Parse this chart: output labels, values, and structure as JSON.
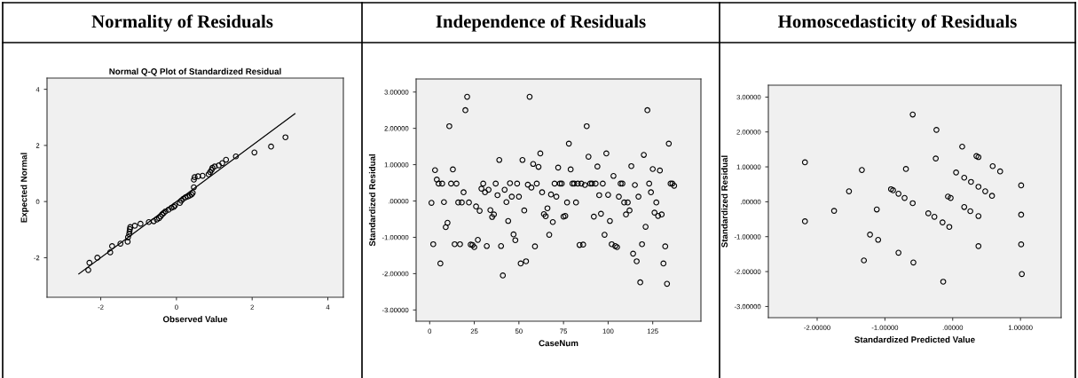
{
  "chart_data": [
    {
      "type": "scatter",
      "title": "Normality of Residuals",
      "subtitle": "Normal Q-Q Plot of Standardized Residual",
      "xlabel": "Observed Value",
      "ylabel": "Expected Normal",
      "xlim": [
        -3.42,
        4.41
      ],
      "ylim": [
        -3.41,
        4.4
      ],
      "xticks": [
        -2,
        0,
        2,
        4
      ],
      "yticks": [
        -2,
        0,
        2,
        4
      ],
      "series": [
        {
          "marker": "circle",
          "color": "#000000",
          "x": [
            -2.33,
            -2.3,
            -2.09,
            -1.75,
            -1.7,
            -1.48,
            -1.29,
            -1.28,
            -1.25,
            -1.24,
            -1.23,
            -1.22,
            -1.1,
            -0.95,
            -0.73,
            -0.6,
            -0.52,
            -0.46,
            -0.42,
            -0.38,
            -0.34,
            -0.29,
            -0.21,
            -0.13,
            -0.07,
            -0.04,
            0.09,
            0.13,
            0.18,
            0.24,
            0.3,
            0.35,
            0.4,
            0.43,
            0.46,
            0.46,
            0.48,
            0.57,
            0.69,
            0.85,
            0.89,
            0.93,
            0.95,
            1.01,
            1.12,
            1.21,
            1.31,
            1.57,
            2.06,
            2.5,
            2.88
          ],
          "values": [
            -2.44,
            -2.18,
            -2.0,
            -1.81,
            -1.59,
            -1.5,
            -1.43,
            -1.27,
            -1.16,
            -1.07,
            -0.98,
            -0.91,
            -0.86,
            -0.79,
            -0.73,
            -0.7,
            -0.64,
            -0.59,
            -0.53,
            -0.46,
            -0.41,
            -0.35,
            -0.29,
            -0.22,
            -0.19,
            -0.14,
            -0.05,
            0.03,
            0.1,
            0.15,
            0.18,
            0.21,
            0.25,
            0.31,
            0.51,
            0.78,
            0.87,
            0.9,
            0.92,
            0.97,
            1.05,
            1.13,
            1.2,
            1.25,
            1.29,
            1.37,
            1.49,
            1.61,
            1.75,
            1.96,
            2.29
          ]
        },
        {
          "type": "line",
          "color": "#000000",
          "x": [
            -2.58,
            3.13
          ],
          "values": [
            -2.58,
            3.13
          ]
        }
      ]
    },
    {
      "type": "scatter",
      "title": "Independence of Residuals",
      "xlabel": "CaseNum",
      "ylabel": "Standardized Residual",
      "marker": "circle",
      "xlim": [
        -7.6,
        152
      ],
      "ylim": [
        -3.31,
        3.36
      ],
      "xticks": [
        0,
        25,
        50,
        75,
        100,
        125
      ],
      "yticks": [
        {
          "value": -3,
          "label": "-3.00000"
        },
        {
          "value": -2,
          "label": "-2.00000"
        },
        {
          "value": -1,
          "label": "-1.00000"
        },
        {
          "value": 0,
          "label": ".00000"
        },
        {
          "value": 1,
          "label": "1.00000"
        },
        {
          "value": 2,
          "label": "2.00000"
        },
        {
          "value": 3,
          "label": "3.00000"
        }
      ],
      "series": [
        {
          "color": "#000000",
          "x": [
            1,
            2,
            3,
            4,
            5,
            6,
            7,
            8,
            9,
            10,
            11,
            12,
            13,
            14,
            15,
            16,
            17,
            18,
            19,
            20,
            21,
            22,
            23,
            24,
            25,
            26,
            27,
            28,
            29,
            30,
            31,
            32,
            33,
            34,
            35,
            36,
            37,
            38,
            39,
            40,
            41,
            42,
            43,
            44,
            45,
            46,
            47,
            48,
            49,
            50,
            51,
            52,
            53,
            54,
            55,
            56,
            57,
            58,
            59,
            60,
            61,
            62,
            63,
            64,
            65,
            66,
            67,
            68,
            69,
            70,
            71,
            72,
            73,
            74,
            75,
            76,
            77,
            78,
            79,
            80,
            81,
            82,
            83,
            84,
            85,
            86,
            87,
            88,
            89,
            90,
            91,
            92,
            93,
            94,
            95,
            96,
            97,
            98,
            99,
            100,
            101,
            102,
            103,
            104,
            105,
            106,
            107,
            108,
            109,
            110,
            111,
            112,
            113,
            114,
            115,
            116,
            117,
            118,
            119,
            120,
            121,
            122,
            123,
            124,
            125,
            126,
            127,
            128,
            129,
            130,
            131,
            132,
            133,
            134,
            135,
            136,
            137
          ],
          "values": [
            -0.05,
            -1.19,
            0.85,
            0.59,
            0.48,
            -1.72,
            0.48,
            -0.03,
            -0.72,
            -0.6,
            2.06,
            0.48,
            0.87,
            -1.19,
            0.48,
            -0.04,
            -1.19,
            -0.04,
            0.24,
            2.5,
            2.87,
            -0.04,
            -1.2,
            -1.21,
            -1.27,
            -0.15,
            -1.07,
            -0.27,
            0.34,
            0.48,
            0.24,
            -1.24,
            0.31,
            -0.25,
            -0.44,
            -0.37,
            0.48,
            0.16,
            1.13,
            -1.24,
            -2.05,
            0.31,
            -0.03,
            -0.55,
            0.49,
            0.12,
            -0.92,
            -1.08,
            0.48,
            0.12,
            -1.72,
            1.13,
            -0.26,
            -1.66,
            0.45,
            2.87,
            0.37,
            1.02,
            -1.25,
            0.48,
            0.94,
            1.31,
            0.24,
            -0.36,
            -0.42,
            -0.2,
            -0.93,
            0.18,
            -0.58,
            0.48,
            0.12,
            0.92,
            0.48,
            0.48,
            -0.43,
            -0.41,
            -0.04,
            1.58,
            0.87,
            0.48,
            0.48,
            -0.04,
            0.48,
            -1.21,
            0.48,
            -1.2,
            0.44,
            2.06,
            1.22,
            0.48,
            0.48,
            -0.43,
            0.48,
            0.95,
            0.16,
            -0.35,
            0.48,
            -0.93,
            1.31,
            0.17,
            -0.55,
            -1.19,
            0.69,
            -1.24,
            -1.27,
            0.12,
            0.48,
            0.48,
            -0.04,
            -0.37,
            -0.04,
            -0.26,
            0.96,
            -1.45,
            0.44,
            -1.66,
            0.12,
            -2.24,
            -1.19,
            1.27,
            -0.71,
            2.5,
            0.48,
            0.24,
            0.88,
            -0.32,
            -0.04,
            -0.41,
            0.84,
            -0.37,
            -1.72,
            -1.25,
            -2.28,
            1.58,
            0.48,
            0.48,
            0.42
          ]
        }
      ]
    },
    {
      "type": "scatter",
      "title": "Homoscedasticity of Residuals",
      "xlabel": "Standardized Predicted Value",
      "ylabel": "Standardized Residual",
      "marker": "circle",
      "xlim": [
        -2.72,
        1.6
      ],
      "ylim": [
        -3.32,
        3.34
      ],
      "xticks": [
        {
          "value": -2,
          "label": "-2.00000"
        },
        {
          "value": -1,
          "label": "-1.00000"
        },
        {
          "value": 0,
          "label": ".00000"
        },
        {
          "value": 1,
          "label": "1.00000"
        }
      ],
      "yticks": [
        {
          "value": -3,
          "label": "-3.00000"
        },
        {
          "value": -2,
          "label": "-2.00000"
        },
        {
          "value": -1,
          "label": "-1.00000"
        },
        {
          "value": 0,
          "label": ".00000"
        },
        {
          "value": 1,
          "label": "1.00000"
        },
        {
          "value": 2,
          "label": "2.00000"
        },
        {
          "value": 3,
          "label": "3.00000"
        }
      ],
      "series": [
        {
          "color": "#000000",
          "x": [
            -2.18,
            -2.18,
            -1.75,
            -1.53,
            -1.34,
            -1.31,
            -1.22,
            -1.12,
            -1.1,
            -0.91,
            -0.88,
            -0.8,
            -0.8,
            -0.71,
            -0.69,
            -0.59,
            -0.59,
            -0.58,
            -0.36,
            -0.27,
            -0.25,
            -0.24,
            -0.15,
            -0.14,
            -0.07,
            -0.05,
            -0.03,
            0.05,
            0.14,
            0.17,
            0.17,
            0.26,
            0.27,
            0.35,
            0.38,
            0.38,
            0.38,
            0.38,
            0.48,
            0.58,
            0.59,
            0.7,
            1.01,
            1.01,
            1.01,
            1.02
          ],
          "values": [
            1.13,
            -0.56,
            -0.26,
            0.3,
            0.91,
            -1.68,
            -0.94,
            -0.22,
            -1.09,
            0.36,
            0.33,
            0.23,
            -1.46,
            0.11,
            0.94,
            -0.04,
            2.5,
            -1.74,
            -0.33,
            -0.43,
            1.24,
            2.06,
            -0.59,
            -2.29,
            0.15,
            -0.72,
            0.11,
            0.84,
            1.58,
            -0.15,
            0.69,
            -0.27,
            0.57,
            1.31,
            1.28,
            0.43,
            -0.41,
            -1.27,
            0.3,
            0.17,
            1.02,
            0.87,
            0.47,
            -0.37,
            -1.22,
            -2.07
          ]
        }
      ]
    }
  ]
}
